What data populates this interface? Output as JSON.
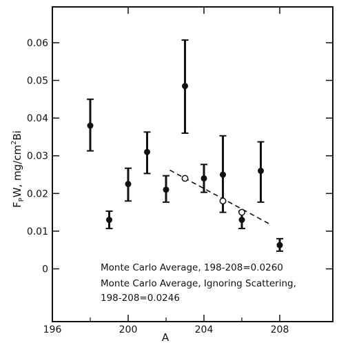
{
  "chart_data": {
    "type": "scatter",
    "title": "",
    "xlabel": "A",
    "ylabel": {
      "parts": [
        "F",
        "P",
        "W, mg/cm",
        "2",
        "Bi"
      ]
    },
    "xlim": [
      196,
      210.8
    ],
    "ylim": [
      -0.014,
      0.0695
    ],
    "x_ticks": [
      196,
      200,
      204,
      208
    ],
    "x_tick_labels": [
      "196",
      "200",
      "204",
      "208"
    ],
    "x_minor_ticks": [
      198,
      202,
      206
    ],
    "y_ticks": [
      0,
      0.01,
      0.02,
      0.03,
      0.04,
      0.05,
      0.06
    ],
    "y_tick_labels": [
      "0",
      "0.01",
      "0.02",
      "0.03",
      "0.04",
      "0.05",
      "0.06"
    ],
    "grid": false,
    "series": [
      {
        "marker": "filled-circle",
        "points": [
          {
            "x": 198,
            "y": 0.038,
            "low": 0.0313,
            "high": 0.045
          },
          {
            "x": 199,
            "y": 0.013,
            "low": 0.0107,
            "high": 0.0153
          },
          {
            "x": 200,
            "y": 0.0225,
            "low": 0.018,
            "high": 0.0267
          },
          {
            "x": 201,
            "y": 0.031,
            "low": 0.0253,
            "high": 0.0363
          },
          {
            "x": 202,
            "y": 0.021,
            "low": 0.0177,
            "high": 0.0247
          },
          {
            "x": 203,
            "y": 0.0485,
            "low": 0.036,
            "high": 0.0607
          },
          {
            "x": 204,
            "y": 0.024,
            "low": 0.0203,
            "high": 0.0277
          },
          {
            "x": 205,
            "y": 0.025,
            "low": 0.015,
            "high": 0.0353
          },
          {
            "x": 206,
            "y": 0.013,
            "low": 0.0107,
            "high": 0.0153
          },
          {
            "x": 207,
            "y": 0.026,
            "low": 0.0177,
            "high": 0.0337
          },
          {
            "x": 208,
            "y": 0.0063,
            "low": 0.0047,
            "high": 0.008
          }
        ]
      },
      {
        "marker": "open-circle",
        "points": [
          {
            "x": 203,
            "y": 0.024
          },
          {
            "x": 205,
            "y": 0.018
          },
          {
            "x": 206,
            "y": 0.015
          }
        ]
      }
    ],
    "trend_line": {
      "style": "dashed",
      "from": [
        202.2,
        0.0262
      ],
      "to": [
        207.5,
        0.0118
      ]
    },
    "annotations": [
      "Monte Carlo Average, 198-208=0.0260",
      "Monte Carlo Average, Ignoring Scattering,",
      "198-208=0.0246"
    ]
  }
}
